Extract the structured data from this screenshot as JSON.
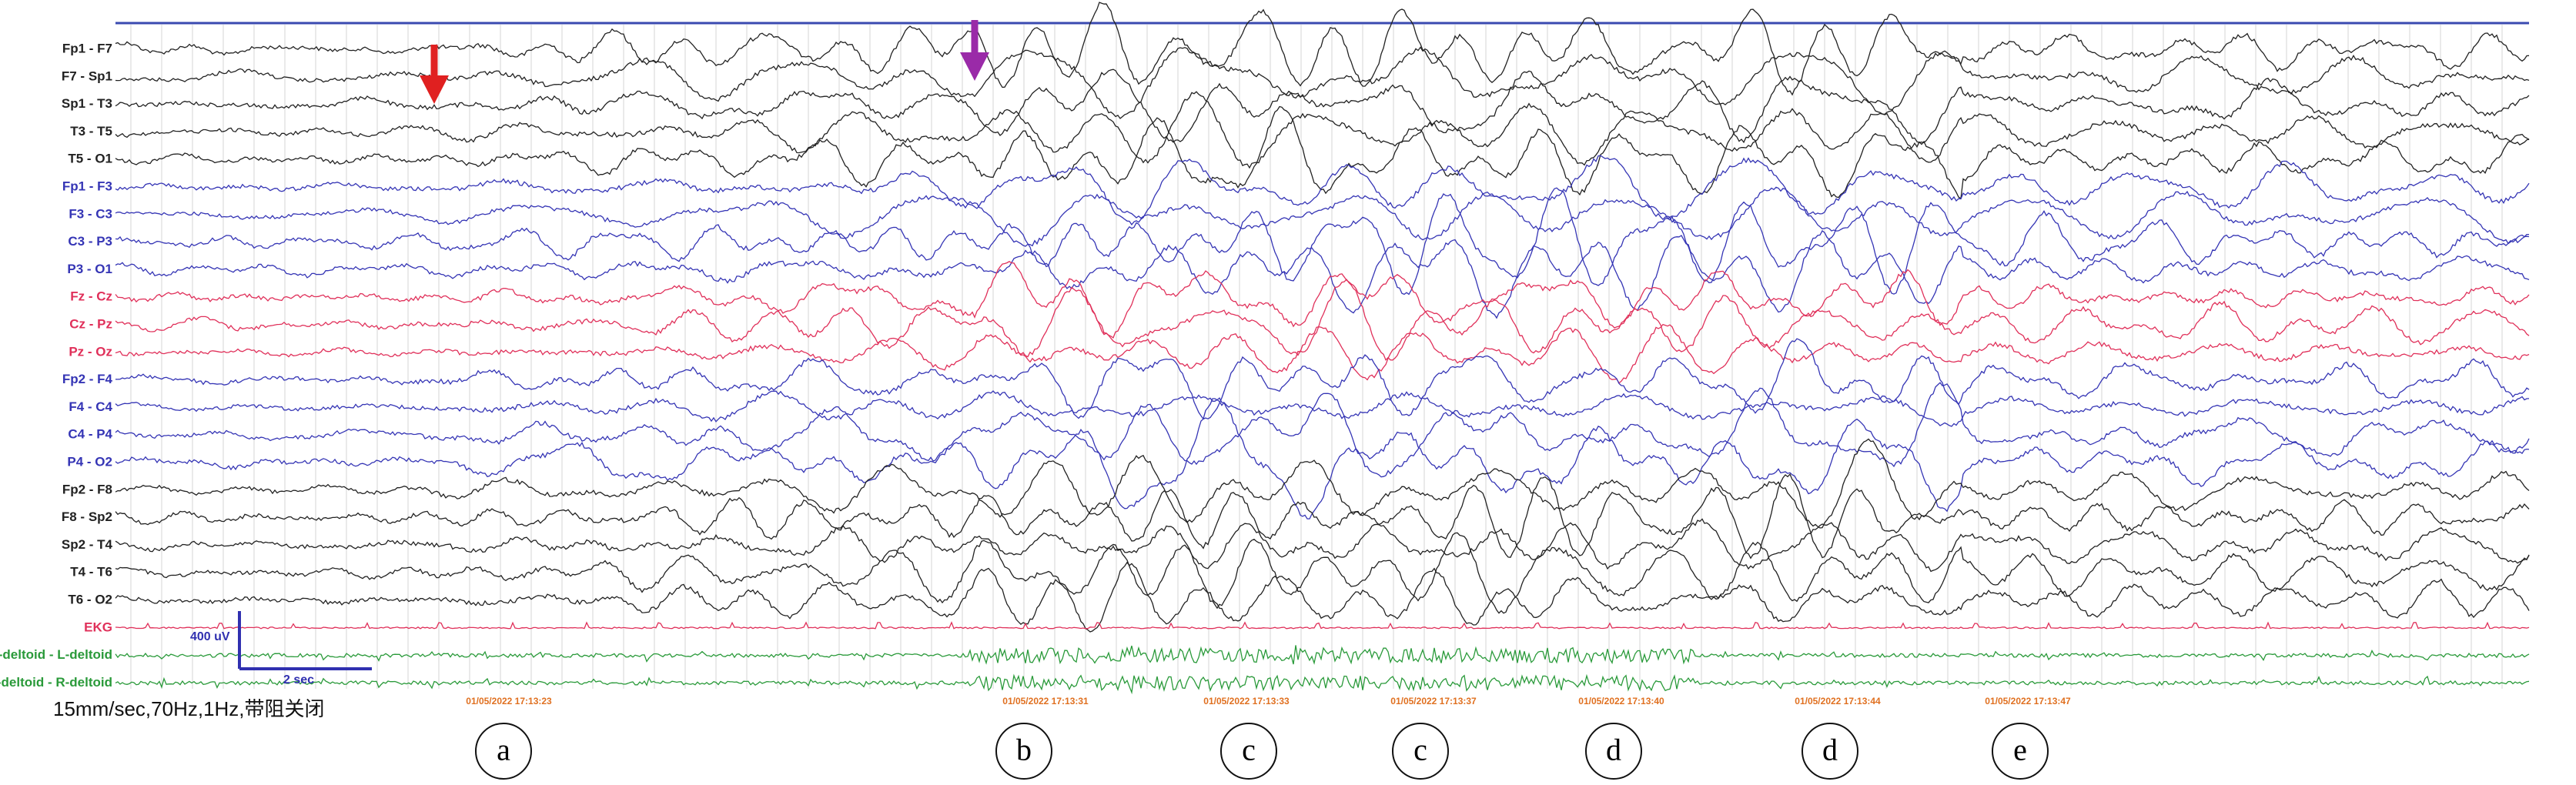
{
  "channels": [
    "Fp1 - F7",
    "F7 - Sp1",
    "Sp1 - T3",
    "T3 - T5",
    "T5 - O1",
    "Fp1 - F3",
    "F3 - C3",
    "C3 - P3",
    "P3 - O1",
    "Fz - Cz",
    "Cz - Pz",
    "Pz - Oz",
    "Fp2 - F4",
    "F4 - C4",
    "C4 - P4",
    "P4 - O2",
    "Fp2 - F8",
    "F8 - Sp2",
    "Sp2 - T4",
    "T4 - T6",
    "T6 - O2",
    "EKG",
    "L-deltoid - L-deltoid",
    "R-deltoid - R-deltoid"
  ],
  "scale_bar": {
    "amplitude": "400 uV",
    "time": "2 sec"
  },
  "settings": "15mm/sec,70Hz,1Hz,带阻关闭",
  "timestamps": [
    "01/05/2022 17:13:23",
    "01/05/2022 17:13:31",
    "01/05/2022 17:13:33",
    "01/05/2022 17:13:37",
    "01/05/2022 17:13:40",
    "01/05/2022 17:13:44",
    "01/05/2022 17:13:47"
  ],
  "markers": [
    "a",
    "b",
    "c",
    "c",
    "d",
    "d",
    "e"
  ]
}
